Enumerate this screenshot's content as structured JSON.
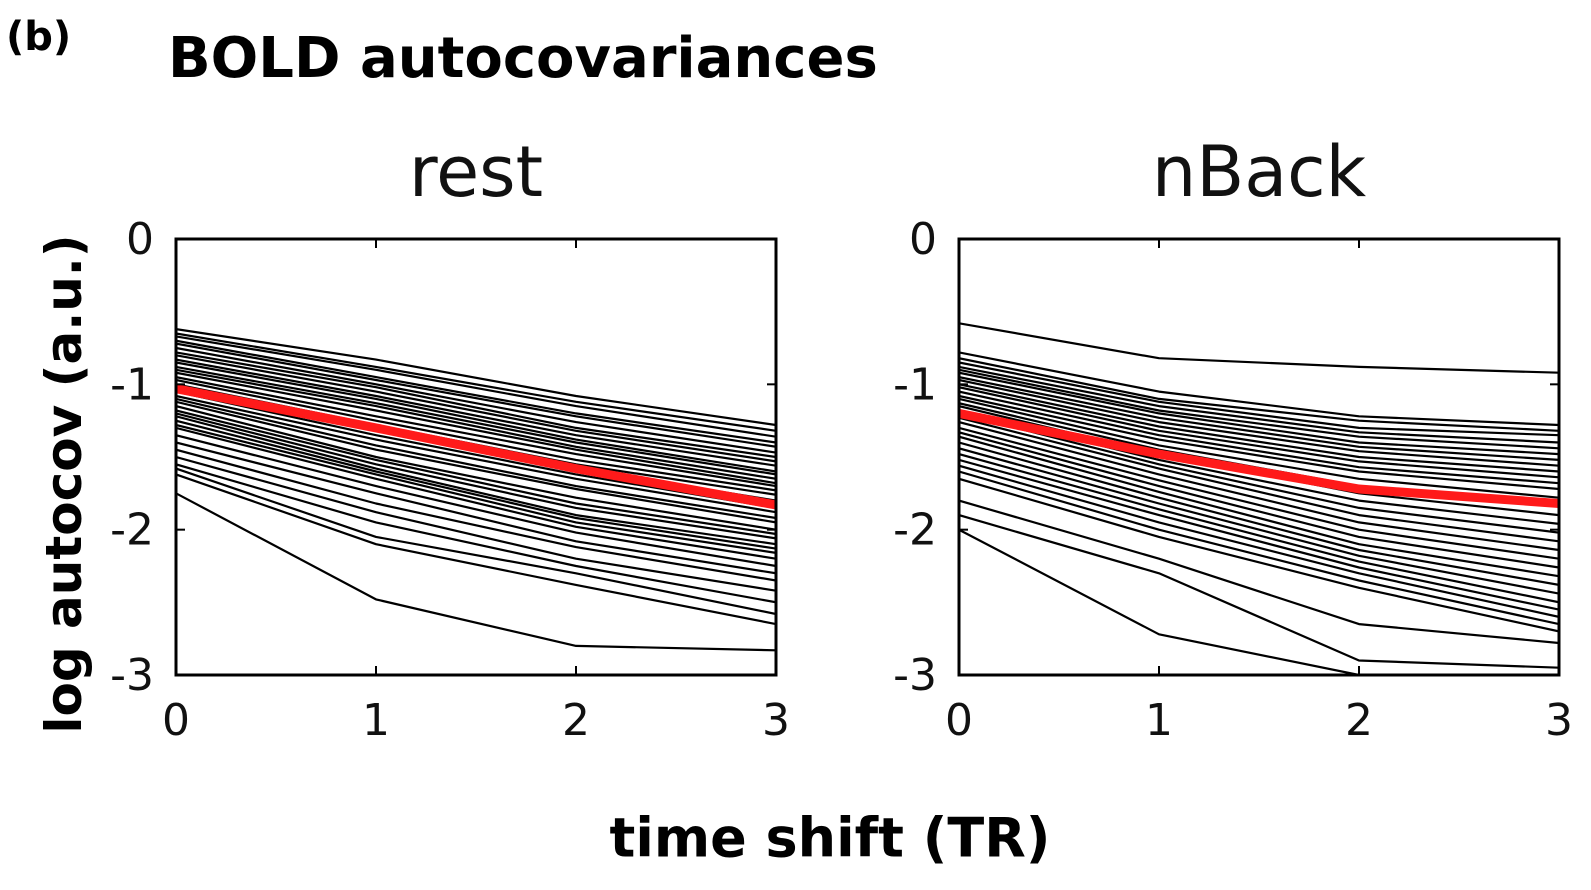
{
  "figure": {
    "panel_label": "(b)",
    "title": "BOLD autocovariances",
    "xlabel": "time shift (TR)",
    "ylabel": "log autocov (a.u.)"
  },
  "colors": {
    "lines": "#000000",
    "mean": "#ff1a1a",
    "axes": "#000000"
  },
  "chart_data": [
    {
      "type": "line",
      "title": "rest",
      "x": [
        0,
        1,
        2,
        3
      ],
      "xlim": [
        0,
        3
      ],
      "ylim": [
        -3,
        0
      ],
      "xticks": [
        "0",
        "1",
        "2",
        "3"
      ],
      "yticks": [
        "0",
        "-1",
        "-2",
        "-3"
      ],
      "grid": false,
      "mean": {
        "values": [
          -1.03,
          -1.3,
          -1.58,
          -1.83
        ]
      },
      "series": [
        {
          "values": [
            -0.62,
            -0.83,
            -1.08,
            -1.28
          ]
        },
        {
          "values": [
            -0.65,
            -0.88,
            -1.12,
            -1.32
          ]
        },
        {
          "values": [
            -0.67,
            -0.9,
            -1.15,
            -1.36
          ]
        },
        {
          "values": [
            -0.7,
            -0.95,
            -1.2,
            -1.4
          ]
        },
        {
          "values": [
            -0.72,
            -0.97,
            -1.22,
            -1.43
          ]
        },
        {
          "values": [
            -0.75,
            -1.0,
            -1.26,
            -1.47
          ]
        },
        {
          "values": [
            -0.78,
            -1.02,
            -1.3,
            -1.5
          ]
        },
        {
          "values": [
            -0.8,
            -1.05,
            -1.32,
            -1.53
          ]
        },
        {
          "values": [
            -0.83,
            -1.08,
            -1.35,
            -1.56
          ]
        },
        {
          "values": [
            -0.85,
            -1.1,
            -1.38,
            -1.6
          ]
        },
        {
          "values": [
            -0.88,
            -1.13,
            -1.4,
            -1.62
          ]
        },
        {
          "values": [
            -0.9,
            -1.15,
            -1.43,
            -1.65
          ]
        },
        {
          "values": [
            -0.92,
            -1.18,
            -1.45,
            -1.68
          ]
        },
        {
          "values": [
            -0.95,
            -1.22,
            -1.48,
            -1.7
          ]
        },
        {
          "values": [
            -0.97,
            -1.25,
            -1.52,
            -1.73
          ]
        },
        {
          "values": [
            -1.0,
            -1.28,
            -1.55,
            -1.76
          ]
        },
        {
          "values": [
            -1.02,
            -1.3,
            -1.58,
            -1.8
          ]
        },
        {
          "values": [
            -1.05,
            -1.35,
            -1.62,
            -1.85
          ]
        },
        {
          "values": [
            -1.08,
            -1.38,
            -1.65,
            -1.88
          ]
        },
        {
          "values": [
            -1.1,
            -1.42,
            -1.7,
            -1.92
          ]
        },
        {
          "values": [
            -1.12,
            -1.45,
            -1.72,
            -1.95
          ]
        },
        {
          "values": [
            -1.15,
            -1.5,
            -1.78,
            -2.0
          ]
        },
        {
          "values": [
            -1.18,
            -1.52,
            -1.82,
            -2.03
          ]
        },
        {
          "values": [
            -1.2,
            -1.55,
            -1.85,
            -2.06
          ]
        },
        {
          "values": [
            -1.22,
            -1.58,
            -1.9,
            -2.1
          ]
        },
        {
          "values": [
            -1.25,
            -1.6,
            -1.92,
            -2.13
          ]
        },
        {
          "values": [
            -1.28,
            -1.62,
            -1.95,
            -2.16
          ]
        },
        {
          "values": [
            -1.3,
            -1.65,
            -1.98,
            -2.2
          ]
        },
        {
          "values": [
            -1.35,
            -1.7,
            -2.02,
            -2.25
          ]
        },
        {
          "values": [
            -1.4,
            -1.75,
            -2.08,
            -2.3
          ]
        },
        {
          "values": [
            -1.45,
            -1.82,
            -2.12,
            -2.35
          ]
        },
        {
          "values": [
            -1.5,
            -1.88,
            -2.2,
            -2.42
          ]
        },
        {
          "values": [
            -1.55,
            -1.95,
            -2.25,
            -2.5
          ]
        },
        {
          "values": [
            -1.58,
            -2.05,
            -2.3,
            -2.58
          ]
        },
        {
          "values": [
            -1.62,
            -2.1,
            -2.38,
            -2.65
          ]
        },
        {
          "values": [
            -1.75,
            -2.48,
            -2.8,
            -2.83
          ]
        }
      ]
    },
    {
      "type": "line",
      "title": "nBack",
      "x": [
        0,
        1,
        2,
        3
      ],
      "xlim": [
        0,
        3
      ],
      "ylim": [
        -3,
        0
      ],
      "xticks": [
        "0",
        "1",
        "2",
        "3"
      ],
      "yticks": [
        "0",
        "-1",
        "-2",
        "-3"
      ],
      "grid": false,
      "mean": {
        "values": [
          -1.2,
          -1.48,
          -1.72,
          -1.82
        ]
      },
      "series": [
        {
          "values": [
            -0.58,
            -0.82,
            -0.88,
            -0.92
          ]
        },
        {
          "values": [
            -0.78,
            -1.05,
            -1.22,
            -1.28
          ]
        },
        {
          "values": [
            -0.82,
            -1.1,
            -1.25,
            -1.32
          ]
        },
        {
          "values": [
            -0.85,
            -1.12,
            -1.3,
            -1.35
          ]
        },
        {
          "values": [
            -0.88,
            -1.15,
            -1.33,
            -1.4
          ]
        },
        {
          "values": [
            -0.9,
            -1.18,
            -1.36,
            -1.44
          ]
        },
        {
          "values": [
            -0.92,
            -1.2,
            -1.4,
            -1.48
          ]
        },
        {
          "values": [
            -0.95,
            -1.23,
            -1.43,
            -1.52
          ]
        },
        {
          "values": [
            -0.97,
            -1.26,
            -1.46,
            -1.56
          ]
        },
        {
          "values": [
            -1.0,
            -1.29,
            -1.5,
            -1.6
          ]
        },
        {
          "values": [
            -1.02,
            -1.32,
            -1.53,
            -1.64
          ]
        },
        {
          "values": [
            -1.05,
            -1.35,
            -1.57,
            -1.68
          ]
        },
        {
          "values": [
            -1.08,
            -1.38,
            -1.6,
            -1.72
          ]
        },
        {
          "values": [
            -1.1,
            -1.42,
            -1.65,
            -1.78
          ]
        },
        {
          "values": [
            -1.13,
            -1.45,
            -1.7,
            -1.84
          ]
        },
        {
          "values": [
            -1.15,
            -1.48,
            -1.75,
            -1.9
          ]
        },
        {
          "values": [
            -1.18,
            -1.52,
            -1.8,
            -1.96
          ]
        },
        {
          "values": [
            -1.2,
            -1.55,
            -1.85,
            -2.02
          ]
        },
        {
          "values": [
            -1.23,
            -1.58,
            -1.9,
            -2.08
          ]
        },
        {
          "values": [
            -1.26,
            -1.62,
            -1.95,
            -2.14
          ]
        },
        {
          "values": [
            -1.3,
            -1.66,
            -2.0,
            -2.2
          ]
        },
        {
          "values": [
            -1.33,
            -1.7,
            -2.05,
            -2.26
          ]
        },
        {
          "values": [
            -1.36,
            -1.74,
            -2.1,
            -2.32
          ]
        },
        {
          "values": [
            -1.4,
            -1.78,
            -2.14,
            -2.38
          ]
        },
        {
          "values": [
            -1.44,
            -1.82,
            -2.18,
            -2.44
          ]
        },
        {
          "values": [
            -1.48,
            -1.86,
            -2.22,
            -2.5
          ]
        },
        {
          "values": [
            -1.52,
            -1.9,
            -2.26,
            -2.55
          ]
        },
        {
          "values": [
            -1.56,
            -1.95,
            -2.3,
            -2.6
          ]
        },
        {
          "values": [
            -1.6,
            -2.0,
            -2.35,
            -2.65
          ]
        },
        {
          "values": [
            -1.65,
            -2.05,
            -2.4,
            -2.7
          ]
        },
        {
          "values": [
            -1.8,
            -2.2,
            -2.65,
            -2.78
          ]
        },
        {
          "values": [
            -1.9,
            -2.3,
            -2.9,
            -2.95
          ]
        },
        {
          "values": [
            -2.0,
            -2.72,
            -3.0,
            -3.05
          ]
        }
      ]
    }
  ]
}
